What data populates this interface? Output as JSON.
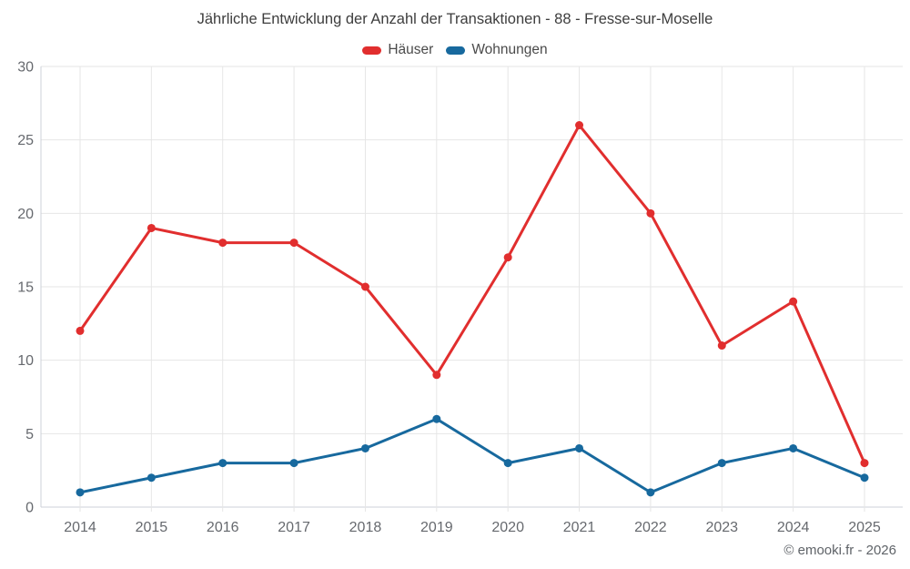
{
  "title": "Jährliche Entwicklung der Anzahl der Transaktionen - 88 - Fresse-sur-Moselle",
  "credit": "© emooki.fr - 2026",
  "colors": {
    "grid": "#e6e6e6",
    "axis_line": "#ccd1d9",
    "axis_text": "#66696e",
    "houses": "#e12e2e",
    "apartments": "#17699e"
  },
  "chart_data": {
    "type": "line",
    "title": "Jährliche Entwicklung der Anzahl der Transaktionen - 88 - Fresse-sur-Moselle",
    "categories": [
      "2014",
      "2015",
      "2016",
      "2017",
      "2018",
      "2019",
      "2020",
      "2021",
      "2022",
      "2023",
      "2024",
      "2025"
    ],
    "series": [
      {
        "name": "Häuser",
        "color": "#e12e2e",
        "values": [
          12,
          19,
          18,
          18,
          15,
          9,
          17,
          26,
          20,
          11,
          14,
          3
        ]
      },
      {
        "name": "Wohnungen",
        "color": "#17699e",
        "values": [
          1,
          2,
          3,
          3,
          4,
          6,
          3,
          4,
          1,
          3,
          4,
          2
        ]
      }
    ],
    "xlabel": "",
    "ylabel": "",
    "ylim": [
      0,
      30
    ],
    "yticks": [
      0,
      5,
      10,
      15,
      20,
      25,
      30
    ],
    "grid": true,
    "legend_position": "top"
  }
}
